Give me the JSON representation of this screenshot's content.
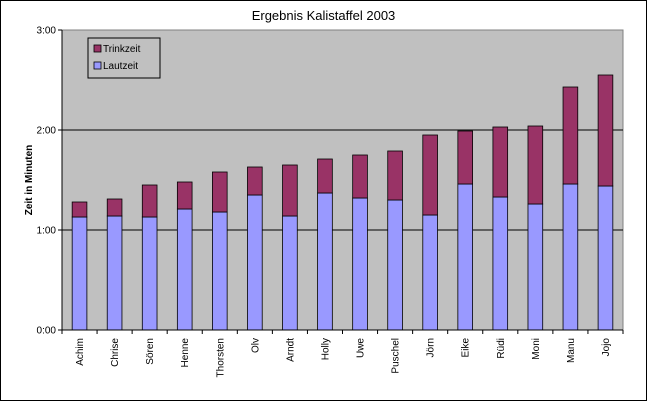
{
  "chart_data": {
    "type": "bar",
    "stacked": true,
    "title": "Ergebnis Kalistaffel 2003",
    "ylabel": "Zeit in Minuten",
    "xlabel": "",
    "ylim": [
      0,
      3
    ],
    "yticks": [
      {
        "value": 0,
        "label": "0:00"
      },
      {
        "value": 1,
        "label": "1:00"
      },
      {
        "value": 2,
        "label": "2:00"
      },
      {
        "value": 3,
        "label": "3:00"
      }
    ],
    "grid": true,
    "legend_position": "top-left",
    "categories": [
      "Achim",
      "Chrise",
      "Sören",
      "Henne",
      "Thorsten",
      "Olv",
      "Arndt",
      "Holly",
      "Uwe",
      "Puschel",
      "Jörn",
      "Eike",
      "Rüdi",
      "Moni",
      "Manu",
      "Jojo"
    ],
    "series": [
      {
        "name": "Lautzeit",
        "color": "#9999FF",
        "values": [
          1.13,
          1.14,
          1.13,
          1.21,
          1.18,
          1.35,
          1.14,
          1.37,
          1.32,
          1.3,
          1.15,
          1.46,
          1.33,
          1.26,
          1.46,
          1.44
        ]
      },
      {
        "name": "Trinkzeit",
        "color": "#993366",
        "values": [
          0.15,
          0.17,
          0.32,
          0.27,
          0.4,
          0.28,
          0.51,
          0.34,
          0.43,
          0.49,
          0.8,
          0.53,
          0.7,
          0.78,
          0.97,
          1.11
        ]
      }
    ],
    "plot_background": "#C0C0C0"
  }
}
